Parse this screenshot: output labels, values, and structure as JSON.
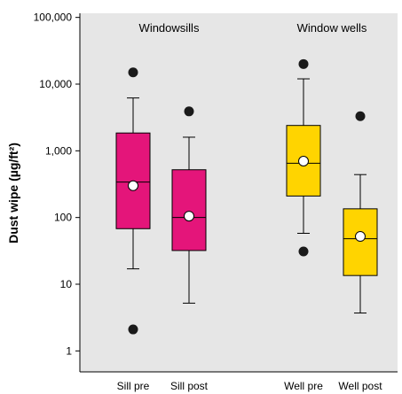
{
  "chart_data": {
    "type": "box",
    "title": "",
    "ylabel": "Dust wipe (µg/ft²)",
    "xlabel": "",
    "yscale": "log",
    "ylim": [
      0.5,
      100000
    ],
    "yticks": [
      {
        "value": 1,
        "label": "1"
      },
      {
        "value": 10,
        "label": "10"
      },
      {
        "value": 100,
        "label": "100"
      },
      {
        "value": 1000,
        "label": "1,000"
      },
      {
        "value": 10000,
        "label": "10,000"
      },
      {
        "value": 100000,
        "label": "100,000"
      }
    ],
    "groups": [
      {
        "label": "Windowsills",
        "categories": [
          "Sill pre",
          "Sill post"
        ]
      },
      {
        "label": "Window wells",
        "categories": [
          "Well pre",
          "Well post"
        ]
      }
    ],
    "categories": [
      "Sill pre",
      "Sill post",
      "Well pre",
      "Well post"
    ],
    "boxes": [
      {
        "category": "Sill pre",
        "whisker_low": 17,
        "q1": 68,
        "median": 340,
        "q3": 1850,
        "whisker_high": 6200,
        "mean": 300,
        "outliers": [
          15000,
          2.1
        ]
      },
      {
        "category": "Sill post",
        "whisker_low": 5.2,
        "q1": 32,
        "median": 100,
        "q3": 520,
        "whisker_high": 1600,
        "mean": 105,
        "outliers": [
          3900
        ]
      },
      {
        "category": "Well pre",
        "whisker_low": 58,
        "q1": 210,
        "median": 650,
        "q3": 2400,
        "whisker_high": 12000,
        "mean": 700,
        "outliers": [
          20000,
          31
        ]
      },
      {
        "category": "Well post",
        "whisker_low": 3.7,
        "q1": 13.5,
        "median": 48,
        "q3": 135,
        "whisker_high": 440,
        "mean": 52,
        "outliers": [
          3300
        ]
      }
    ],
    "colors": {
      "background": "#e6e6e6",
      "sill_box": "#e4157a",
      "well_box": "#ffd400",
      "outlier": "#1a1a1a",
      "mean_marker": "#ffffff"
    },
    "grid": false,
    "legend": "none"
  }
}
